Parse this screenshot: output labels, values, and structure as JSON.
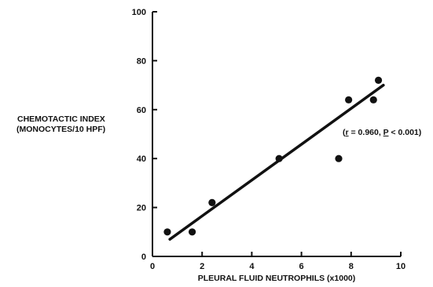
{
  "chart_data": {
    "type": "scatter",
    "title": "",
    "xlabel": "PLEURAL FLUID NEUTROPHILS (x1000)",
    "ylabel_lines": [
      "CHEMOTACTIC INDEX",
      "(MONOCYTES/10 HPF)"
    ],
    "xlim": [
      0,
      10
    ],
    "ylim": [
      0,
      100
    ],
    "x_ticks": [
      0,
      2,
      4,
      6,
      8,
      10
    ],
    "y_ticks": [
      0,
      20,
      40,
      60,
      80,
      100
    ],
    "grid": false,
    "points": [
      {
        "x": 0.6,
        "y": 10
      },
      {
        "x": 1.6,
        "y": 10
      },
      {
        "x": 2.4,
        "y": 22
      },
      {
        "x": 5.1,
        "y": 40
      },
      {
        "x": 7.5,
        "y": 40
      },
      {
        "x": 7.9,
        "y": 64
      },
      {
        "x": 8.9,
        "y": 64
      },
      {
        "x": 9.1,
        "y": 72
      }
    ],
    "fit_line": {
      "x": [
        0.7,
        9.3
      ],
      "y": [
        7,
        70
      ]
    },
    "annotation": {
      "open": "(",
      "r_symbol": "r",
      "r_text": " = 0.960, ",
      "p_symbol": "P",
      "p_text": " < 0.001)"
    }
  }
}
